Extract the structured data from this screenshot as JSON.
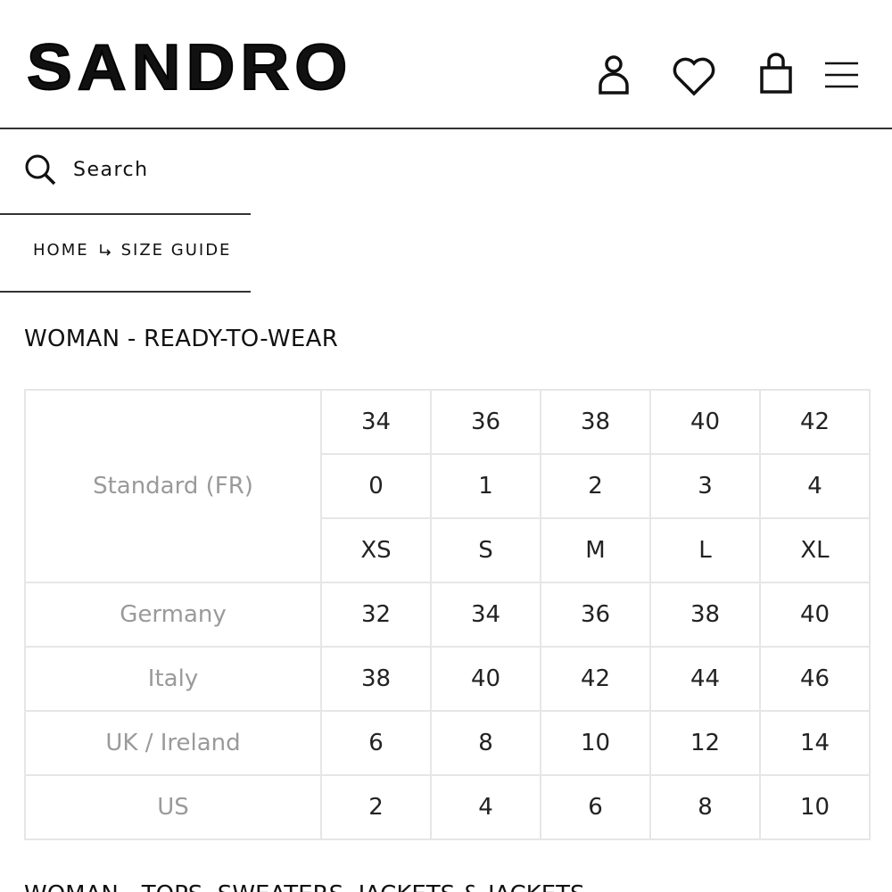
{
  "header": {
    "logo": "SANDRO"
  },
  "search": {
    "placeholder": "Search"
  },
  "breadcrumb": [
    "HOME",
    "SIZE GUIDE"
  ],
  "section_title": "WOMAN - READY-TO-WEAR",
  "table": {
    "standard": {
      "label": "Standard (FR)",
      "rows": [
        [
          34,
          36,
          38,
          40,
          42
        ],
        [
          0,
          1,
          2,
          3,
          4
        ],
        [
          "XS",
          "S",
          "M",
          "L",
          "XL"
        ]
      ]
    },
    "rows": [
      {
        "label": "Germany",
        "values": [
          32,
          34,
          36,
          38,
          40
        ]
      },
      {
        "label": "Italy",
        "values": [
          38,
          40,
          42,
          44,
          46
        ]
      },
      {
        "label": "UK / Ireland",
        "values": [
          6,
          8,
          10,
          12,
          14
        ]
      },
      {
        "label": "US",
        "values": [
          2,
          4,
          6,
          8,
          10
        ]
      }
    ]
  },
  "next_section_title": "WOMAN - TOPS, SWEATERS, JACKETS & JACKETS"
}
